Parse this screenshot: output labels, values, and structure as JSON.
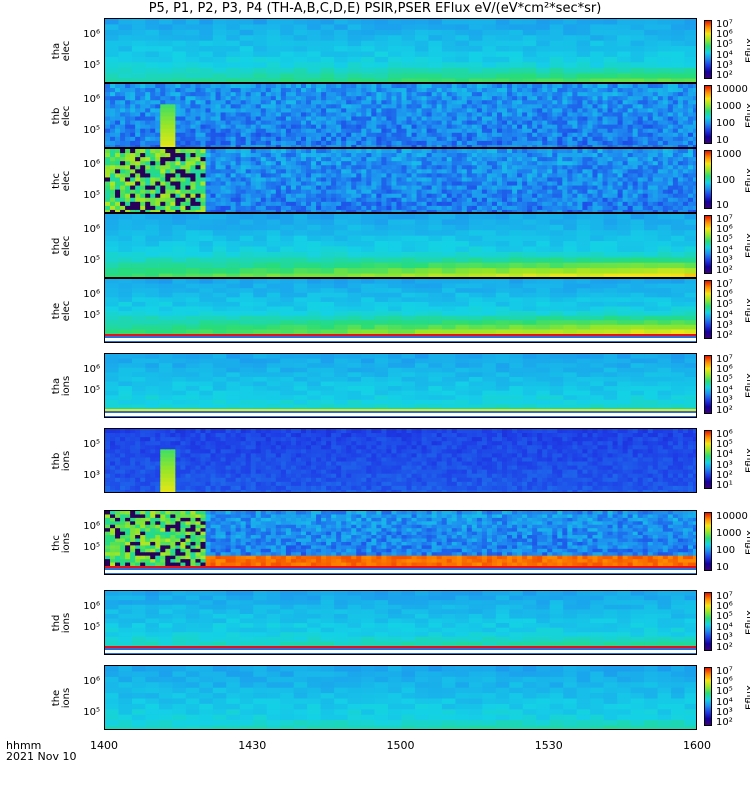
{
  "title": "P5, P1, P2, P3, P4 (TH-A,B,C,D,E) PSIR,PSER EFlux eV/(eV*cm²*sec*sr)",
  "footer": {
    "label": "hhmm",
    "date": "2021 Nov 10"
  },
  "colors": {
    "low": "#3a007a",
    "mid": "#1fc8e8",
    "high": "#ff2a00",
    "fill": "#ffffff",
    "bar_red": "#e8101a",
    "bar_yellow": "#f5e800"
  },
  "chart_data": {
    "type": "heatmap",
    "title": "P5, P1, P2, P3, P4 (TH-A,B,C,D,E) PSIR,PSER EFlux eV/(eV*cm²*sec*sr)",
    "xlabel": "hhmm",
    "x_ticks": [
      "1400",
      "1430",
      "1500",
      "1530",
      "1600"
    ],
    "x_range": [
      "14:00",
      "16:00"
    ],
    "date": "2021 Nov 10",
    "colorbar_label": "Eflux",
    "panels": [
      {
        "probe": "tha",
        "species": "elec",
        "ylabel": "tha elec",
        "y_scale": "log",
        "y_ticks": [
          "10⁶",
          "10⁵"
        ],
        "color_ticks": [
          "10⁷",
          "10⁶",
          "10⁵",
          "10⁴",
          "10³",
          "10²"
        ],
        "pattern": "smooth",
        "high_band_fraction": 0.35,
        "high_level": 0.72
      },
      {
        "probe": "thb",
        "species": "elec",
        "ylabel": "thb elec",
        "y_scale": "log",
        "y_ticks": [
          "10⁶",
          "10⁵"
        ],
        "color_ticks": [
          "10000",
          "1000",
          "100",
          "10"
        ],
        "pattern": "noisy",
        "spike_time": "14:12"
      },
      {
        "probe": "thc",
        "species": "elec",
        "ylabel": "thc elec",
        "y_scale": "log",
        "y_ticks": [
          "10⁶",
          "10⁵"
        ],
        "color_ticks": [
          "1000",
          "100",
          "10"
        ],
        "pattern": "noisy",
        "burst_end": "14:20"
      },
      {
        "probe": "thd",
        "species": "elec",
        "ylabel": "thd elec",
        "y_scale": "log",
        "y_ticks": [
          "10⁶",
          "10⁵"
        ],
        "color_ticks": [
          "10⁷",
          "10⁶",
          "10⁵",
          "10⁴",
          "10³",
          "10²"
        ],
        "pattern": "smooth",
        "high_band_fraction": 0.45,
        "high_level": 0.9
      },
      {
        "probe": "the",
        "species": "elec",
        "ylabel": "the elec",
        "y_scale": "log",
        "y_ticks": [
          "10⁶",
          "10⁵"
        ],
        "color_ticks": [
          "10⁷",
          "10⁶",
          "10⁵",
          "10⁴",
          "10³",
          "10²"
        ],
        "pattern": "smooth",
        "high_band_fraction": 0.45,
        "high_level": 0.85,
        "bottom_stripes": "red"
      },
      {
        "probe": "tha",
        "species": "ions",
        "ylabel": "tha ions",
        "y_scale": "log",
        "y_ticks": [
          "10⁶",
          "10⁵"
        ],
        "color_ticks": [
          "10⁷",
          "10⁶",
          "10⁵",
          "10⁴",
          "10³",
          "10²"
        ],
        "pattern": "smooth",
        "high_band_fraction": 0.2,
        "high_level": 0.55,
        "bottom_stripes": "yellow"
      },
      {
        "probe": "thb",
        "species": "ions",
        "ylabel": "thb ions",
        "y_scale": "log",
        "y_ticks": [
          "10⁵",
          "10³"
        ],
        "color_ticks": [
          "10⁶",
          "10⁵",
          "10⁴",
          "10³",
          "10²",
          "10¹"
        ],
        "pattern": "dark",
        "spike_time": "14:12"
      },
      {
        "probe": "thc",
        "species": "ions",
        "ylabel": "thc ions",
        "y_scale": "log",
        "y_ticks": [
          "10⁶",
          "10⁵"
        ],
        "color_ticks": [
          "10000",
          "1000",
          "100",
          "10"
        ],
        "pattern": "noisy",
        "burst_end": "14:20",
        "bottom_stripes": "red"
      },
      {
        "probe": "thd",
        "species": "ions",
        "ylabel": "thd ions",
        "y_scale": "log",
        "y_ticks": [
          "10⁶",
          "10⁵"
        ],
        "color_ticks": [
          "10⁷",
          "10⁶",
          "10⁵",
          "10⁴",
          "10³",
          "10²"
        ],
        "pattern": "smooth",
        "high_band_fraction": 0.25,
        "high_level": 0.6,
        "bottom_stripes": "red"
      },
      {
        "probe": "the",
        "species": "ions",
        "ylabel": "the ions",
        "y_scale": "log",
        "y_ticks": [
          "10⁶",
          "10⁵"
        ],
        "color_ticks": [
          "10⁷",
          "10⁶",
          "10⁵",
          "10⁴",
          "10³",
          "10²"
        ],
        "pattern": "smooth",
        "high_band_fraction": 0.25,
        "high_level": 0.6
      }
    ]
  }
}
